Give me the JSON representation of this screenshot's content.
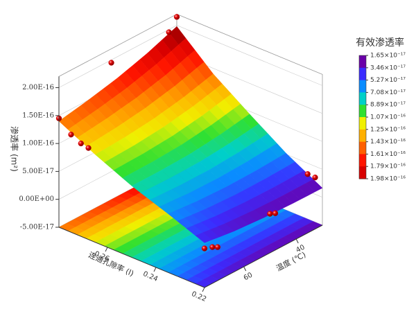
{
  "chart_data": {
    "type": "surface3d",
    "z_label": "渗透率 (m²)",
    "x_label": "温度 (℃)",
    "y_label": "连通孔隙率 (l)",
    "colorbar_title": "有效渗透率",
    "xlim": [
      75,
      30
    ],
    "xticks": [
      60,
      40
    ],
    "ylim": [
      0.22,
      0.28
    ],
    "yticks": [
      0.22,
      0.24,
      0.26
    ],
    "zlim": [
      -5e-17,
      2.2e-16
    ],
    "zticks": [
      {
        "value": -5e-17,
        "label": "-5.00E-17"
      },
      {
        "value": 0,
        "label": "0.00E+00"
      },
      {
        "value": 5e-17,
        "label": "5.00E-17"
      },
      {
        "value": 1e-16,
        "label": "1.00E-16"
      },
      {
        "value": 1.5e-16,
        "label": "1.50E-16"
      },
      {
        "value": 2e-16,
        "label": "2.00E-16"
      }
    ],
    "colorbar_ticks": [
      {
        "value": 1.65e-17,
        "label": "1.65×10⁻¹⁷"
      },
      {
        "value": 3.46e-17,
        "label": "3.46×10⁻¹⁷"
      },
      {
        "value": 5.27e-17,
        "label": "5.27×10⁻¹⁷"
      },
      {
        "value": 7.08e-17,
        "label": "7.08×10⁻¹⁷"
      },
      {
        "value": 8.89e-17,
        "label": "8.89×10⁻¹⁷"
      },
      {
        "value": 1.07e-16,
        "label": "1.07×10⁻¹⁶"
      },
      {
        "value": 1.25e-16,
        "label": "1.25×10⁻¹⁶"
      },
      {
        "value": 1.43e-16,
        "label": "1.43×10⁻¹⁶"
      },
      {
        "value": 1.61e-16,
        "label": "1.61×10⁻¹⁶"
      },
      {
        "value": 1.79e-16,
        "label": "1.79×10⁻¹⁶"
      },
      {
        "value": 1.98e-16,
        "label": "1.98×10⁻¹⁶"
      }
    ],
    "colorbar_colors": [
      "#6a00a8",
      "#3b2cff",
      "#0a8cff",
      "#00d0c8",
      "#30e030",
      "#f0f000",
      "#ffb000",
      "#ff6000",
      "#ff1500",
      "#d80000",
      "#800000"
    ],
    "surface": {
      "x": [
        75,
        63.75,
        52.5,
        41.25,
        30
      ],
      "y": [
        0.22,
        0.235,
        0.25,
        0.265,
        0.28
      ],
      "z": [
        [
          3e-17,
          2.3e-17,
          1.9e-17,
          1.7e-17,
          1.65e-17
        ],
        [
          5.5e-17,
          5e-17,
          4.8e-17,
          4.9e-17,
          5.2e-17
        ],
        [
          7.8e-17,
          7.8e-17,
          8e-17,
          8.6e-17,
          9.5e-17
        ],
        [
          1.07e-16,
          1.1e-16,
          1.16e-16,
          1.26e-16,
          1.4e-16
        ],
        [
          1.4e-16,
          1.5e-16,
          1.62e-16,
          1.78e-16,
          1.98e-16
        ]
      ]
    },
    "points": {
      "color": "#e00000",
      "x": [
        75,
        75,
        74,
        73,
        30,
        33,
        55,
        75,
        72,
        70,
        31,
        30,
        50,
        48
      ],
      "y": [
        0.28,
        0.275,
        0.272,
        0.27,
        0.28,
        0.28,
        0.28,
        0.22,
        0.22,
        0.22,
        0.225,
        0.223,
        0.22,
        0.22
      ],
      "z": [
        1.45e-16,
        1.25e-16,
        1.12e-16,
        1.05e-16,
        2.15e-16,
        1.95e-16,
        1.95e-16,
        2e-17,
        1.5e-17,
        1e-17,
        3.5e-17,
        3e-17,
        2e-17,
        1.6e-17
      ]
    }
  }
}
